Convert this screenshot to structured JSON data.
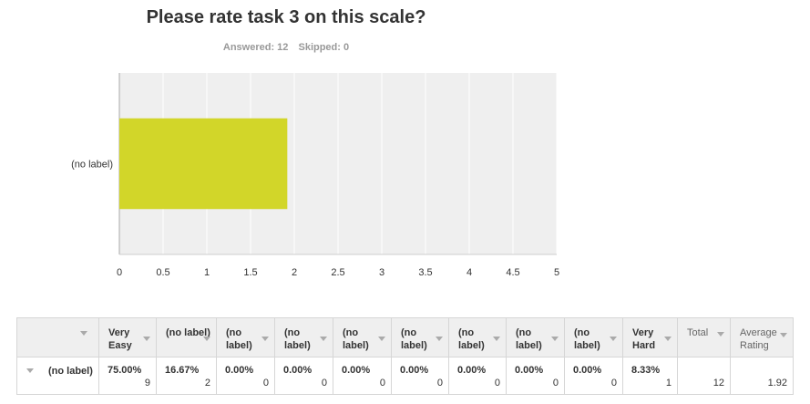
{
  "question": {
    "title": "Please rate task 3 on this scale?",
    "answered": "Answered: 12",
    "skipped": "Skipped: 0"
  },
  "chart_data": {
    "type": "bar",
    "orientation": "horizontal",
    "categories": [
      "(no label)"
    ],
    "values": [
      1.92
    ],
    "xlim": [
      0,
      5
    ],
    "xticks": [
      "0",
      "0.5",
      "1",
      "1.5",
      "2",
      "2.5",
      "3",
      "3.5",
      "4",
      "4.5",
      "5"
    ],
    "grid": true,
    "bar_color": "#d2d629",
    "title": "",
    "xlabel": "",
    "ylabel": ""
  },
  "table": {
    "headers": [
      "Very Easy",
      "(no label)",
      "(no label)",
      "(no label)",
      "(no label)",
      "(no label)",
      "(no label)",
      "(no label)",
      "(no label)",
      "Very Hard"
    ],
    "total_header": "Total",
    "avg_header": "Average Rating",
    "row": {
      "label": "(no label)",
      "cells": [
        {
          "pct": "75.00%",
          "count": "9"
        },
        {
          "pct": "16.67%",
          "count": "2"
        },
        {
          "pct": "0.00%",
          "count": "0"
        },
        {
          "pct": "0.00%",
          "count": "0"
        },
        {
          "pct": "0.00%",
          "count": "0"
        },
        {
          "pct": "0.00%",
          "count": "0"
        },
        {
          "pct": "0.00%",
          "count": "0"
        },
        {
          "pct": "0.00%",
          "count": "0"
        },
        {
          "pct": "0.00%",
          "count": "0"
        },
        {
          "pct": "8.33%",
          "count": "1"
        }
      ],
      "total": "12",
      "average": "1.92"
    }
  }
}
